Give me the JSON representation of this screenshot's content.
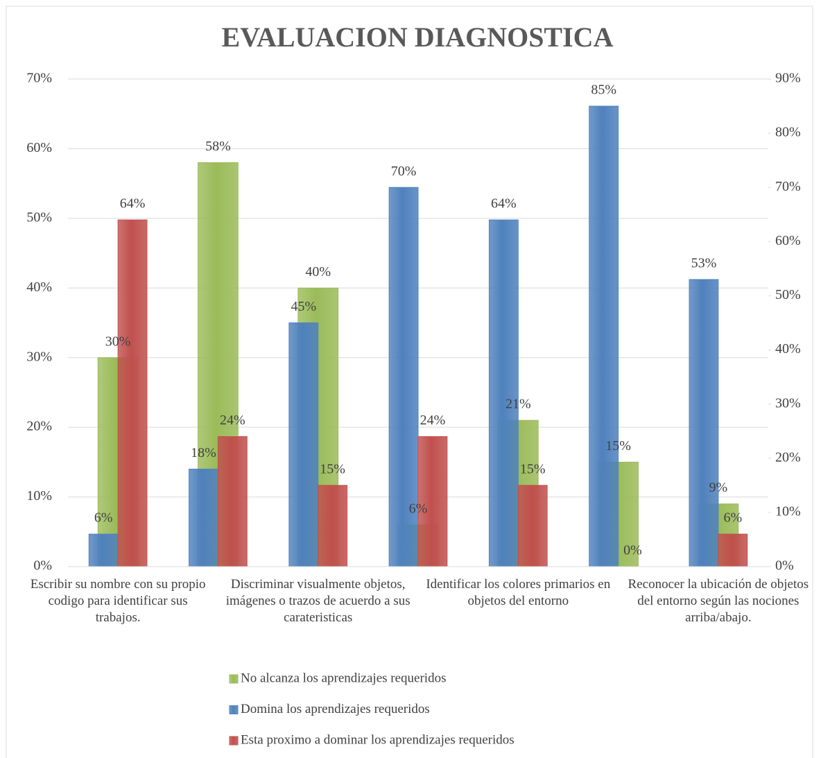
{
  "chart_data": {
    "type": "bar",
    "title": "EVALUACION DIAGNOSTICA",
    "categories": [
      "Escribir su nombre con su propio codigo para identificar sus trabajos.",
      null,
      "Discriminar visualmente objetos, imágenes o trazos de acuerdo a sus carateristicas",
      null,
      "Identificar los colores primarios en objetos del entorno",
      null,
      "Reconocer la ubicación de objetos del entorno según las nociones arriba/abajo."
    ],
    "series": [
      {
        "name": "No alcanza los aprendizajes requeridos",
        "color": "#9bbb59",
        "axis": "y",
        "values": [
          30,
          58,
          40,
          6,
          21,
          15,
          9
        ],
        "value_labels": [
          "30%",
          "58%",
          "40%",
          "6%",
          "21%",
          "15%",
          "9%"
        ]
      },
      {
        "name": "Domina los aprendizajes requeridos",
        "color": "#4f81bd",
        "axis": "y2",
        "values": [
          6,
          18,
          45,
          70,
          64,
          85,
          53
        ],
        "value_labels": [
          "6%",
          "18%",
          "45%",
          "70%",
          "64%",
          "85%",
          "53%"
        ]
      },
      {
        "name": "Esta proximo a dominar los aprendizajes requeridos",
        "color": "#c0504d",
        "axis": "y2",
        "values": [
          64,
          24,
          15,
          24,
          15,
          0,
          6
        ],
        "value_labels": [
          "64%",
          "24%",
          "15%",
          "24%",
          "15%",
          "0%",
          "6%"
        ]
      }
    ],
    "ylim": [
      0,
      70
    ],
    "yticks": [
      {
        "value": 0,
        "label": "0%"
      },
      {
        "value": 10,
        "label": "10%"
      },
      {
        "value": 20,
        "label": "20%"
      },
      {
        "value": 30,
        "label": "30%"
      },
      {
        "value": 40,
        "label": "40%"
      },
      {
        "value": 50,
        "label": "50%"
      },
      {
        "value": 60,
        "label": "60%"
      },
      {
        "value": 70,
        "label": "70%"
      }
    ],
    "y2lim": [
      0,
      90
    ],
    "y2ticks": [
      {
        "value": 0,
        "label": "0%"
      },
      {
        "value": 10,
        "label": "10%"
      },
      {
        "value": 20,
        "label": "20%"
      },
      {
        "value": 30,
        "label": "30%"
      },
      {
        "value": 40,
        "label": "40%"
      },
      {
        "value": 50,
        "label": "50%"
      },
      {
        "value": 60,
        "label": "60%"
      },
      {
        "value": 70,
        "label": "70%"
      },
      {
        "value": 80,
        "label": "80%"
      },
      {
        "value": 90,
        "label": "90%"
      }
    ],
    "grid": true,
    "legend": "bottom"
  }
}
